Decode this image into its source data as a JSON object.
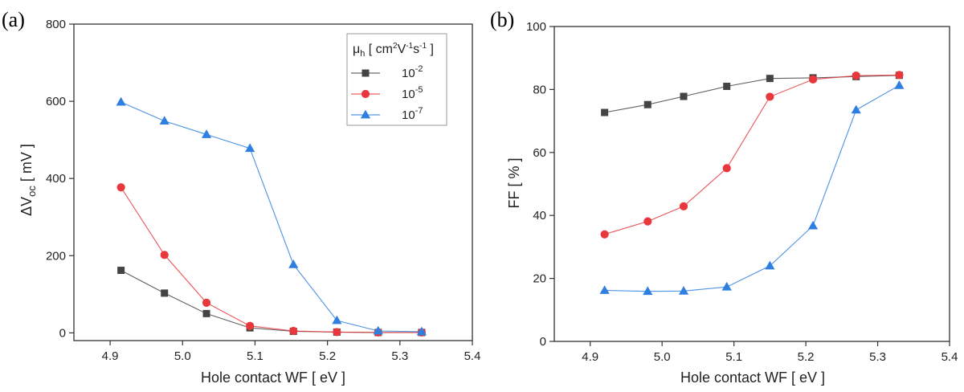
{
  "chart_data": [
    {
      "panel_label": "(a)",
      "type": "line",
      "xlabel": "Hole contact WF [ eV ]",
      "ylabel_main": "ΔV",
      "ylabel_sub": "oc",
      "ylabel_rest": " [ mV ]",
      "xlim": [
        4.85,
        5.4
      ],
      "ylim": [
        -20,
        800
      ],
      "xticks": [
        4.9,
        5.0,
        5.1,
        5.2,
        5.3,
        5.4
      ],
      "xtick_labels": [
        "4.9",
        "5.0",
        "5.1",
        "5.2",
        "5.3",
        "5.4"
      ],
      "yticks": [
        0,
        200,
        400,
        600,
        800
      ],
      "ytick_labels": [
        "0",
        "200",
        "400",
        "600",
        "800"
      ],
      "legend": {
        "title_main": "μ",
        "title_sub": "h",
        "title_rest_1": " [ cm",
        "title_sup_1": "2",
        "title_rest_2": "V",
        "title_sup_2": "-1",
        "title_rest_3": "s",
        "title_sup_3": "-1",
        "title_rest_4": " ]",
        "position": "top-right"
      },
      "series": [
        {
          "name_base": "10",
          "name_exp": "-2",
          "color": "#444444",
          "marker": "square",
          "x": [
            4.915,
            4.975,
            5.033,
            5.093,
            5.153,
            5.213,
            5.27,
            5.33
          ],
          "y": [
            162,
            103,
            50,
            13,
            4,
            2,
            1,
            1
          ]
        },
        {
          "name_base": "10",
          "name_exp": "-5",
          "color": "#e8383d",
          "marker": "circle",
          "x": [
            4.915,
            4.975,
            5.033,
            5.093,
            5.153,
            5.213,
            5.27,
            5.33
          ],
          "y": [
            377,
            202,
            78,
            18,
            5,
            2,
            1,
            1
          ]
        },
        {
          "name_base": "10",
          "name_exp": "-7",
          "color": "#2e7fe0",
          "marker": "triangle",
          "x": [
            4.915,
            4.975,
            5.033,
            5.093,
            5.153,
            5.213,
            5.27,
            5.33
          ],
          "y": [
            598,
            549,
            514,
            478,
            177,
            32,
            5,
            3
          ]
        }
      ]
    },
    {
      "panel_label": "(b)",
      "type": "line",
      "xlabel": "Hole contact WF [ eV ]",
      "ylabel": "FF [ % ]",
      "xlim": [
        4.85,
        5.4
      ],
      "ylim": [
        0,
        100
      ],
      "xticks": [
        4.9,
        5.0,
        5.1,
        5.2,
        5.3,
        5.4
      ],
      "xtick_labels": [
        "4.9",
        "5.0",
        "5.1",
        "5.2",
        "5.3",
        "5.4"
      ],
      "yticks": [
        0,
        20,
        40,
        60,
        80,
        100
      ],
      "ytick_labels": [
        "0",
        "20",
        "40",
        "60",
        "80",
        "100"
      ],
      "series": [
        {
          "name_base": "10",
          "name_exp": "-2",
          "color": "#444444",
          "marker": "square",
          "x": [
            4.92,
            4.98,
            5.03,
            5.09,
            5.15,
            5.21,
            5.27,
            5.33
          ],
          "y": [
            72.7,
            75.2,
            77.8,
            81.0,
            83.5,
            83.7,
            84.1,
            84.5
          ]
        },
        {
          "name_base": "10",
          "name_exp": "-5",
          "color": "#e8383d",
          "marker": "circle",
          "x": [
            4.92,
            4.98,
            5.03,
            5.09,
            5.15,
            5.21,
            5.27,
            5.33
          ],
          "y": [
            34.0,
            38.1,
            42.9,
            55.0,
            77.7,
            83.2,
            84.4,
            84.6
          ]
        },
        {
          "name_base": "10",
          "name_exp": "-7",
          "color": "#2e7fe0",
          "marker": "triangle",
          "x": [
            4.92,
            4.98,
            5.03,
            5.09,
            5.15,
            5.21,
            5.27,
            5.33
          ],
          "y": [
            16.2,
            15.9,
            16.0,
            17.3,
            24.0,
            36.7,
            73.5,
            81.3
          ]
        }
      ]
    }
  ]
}
